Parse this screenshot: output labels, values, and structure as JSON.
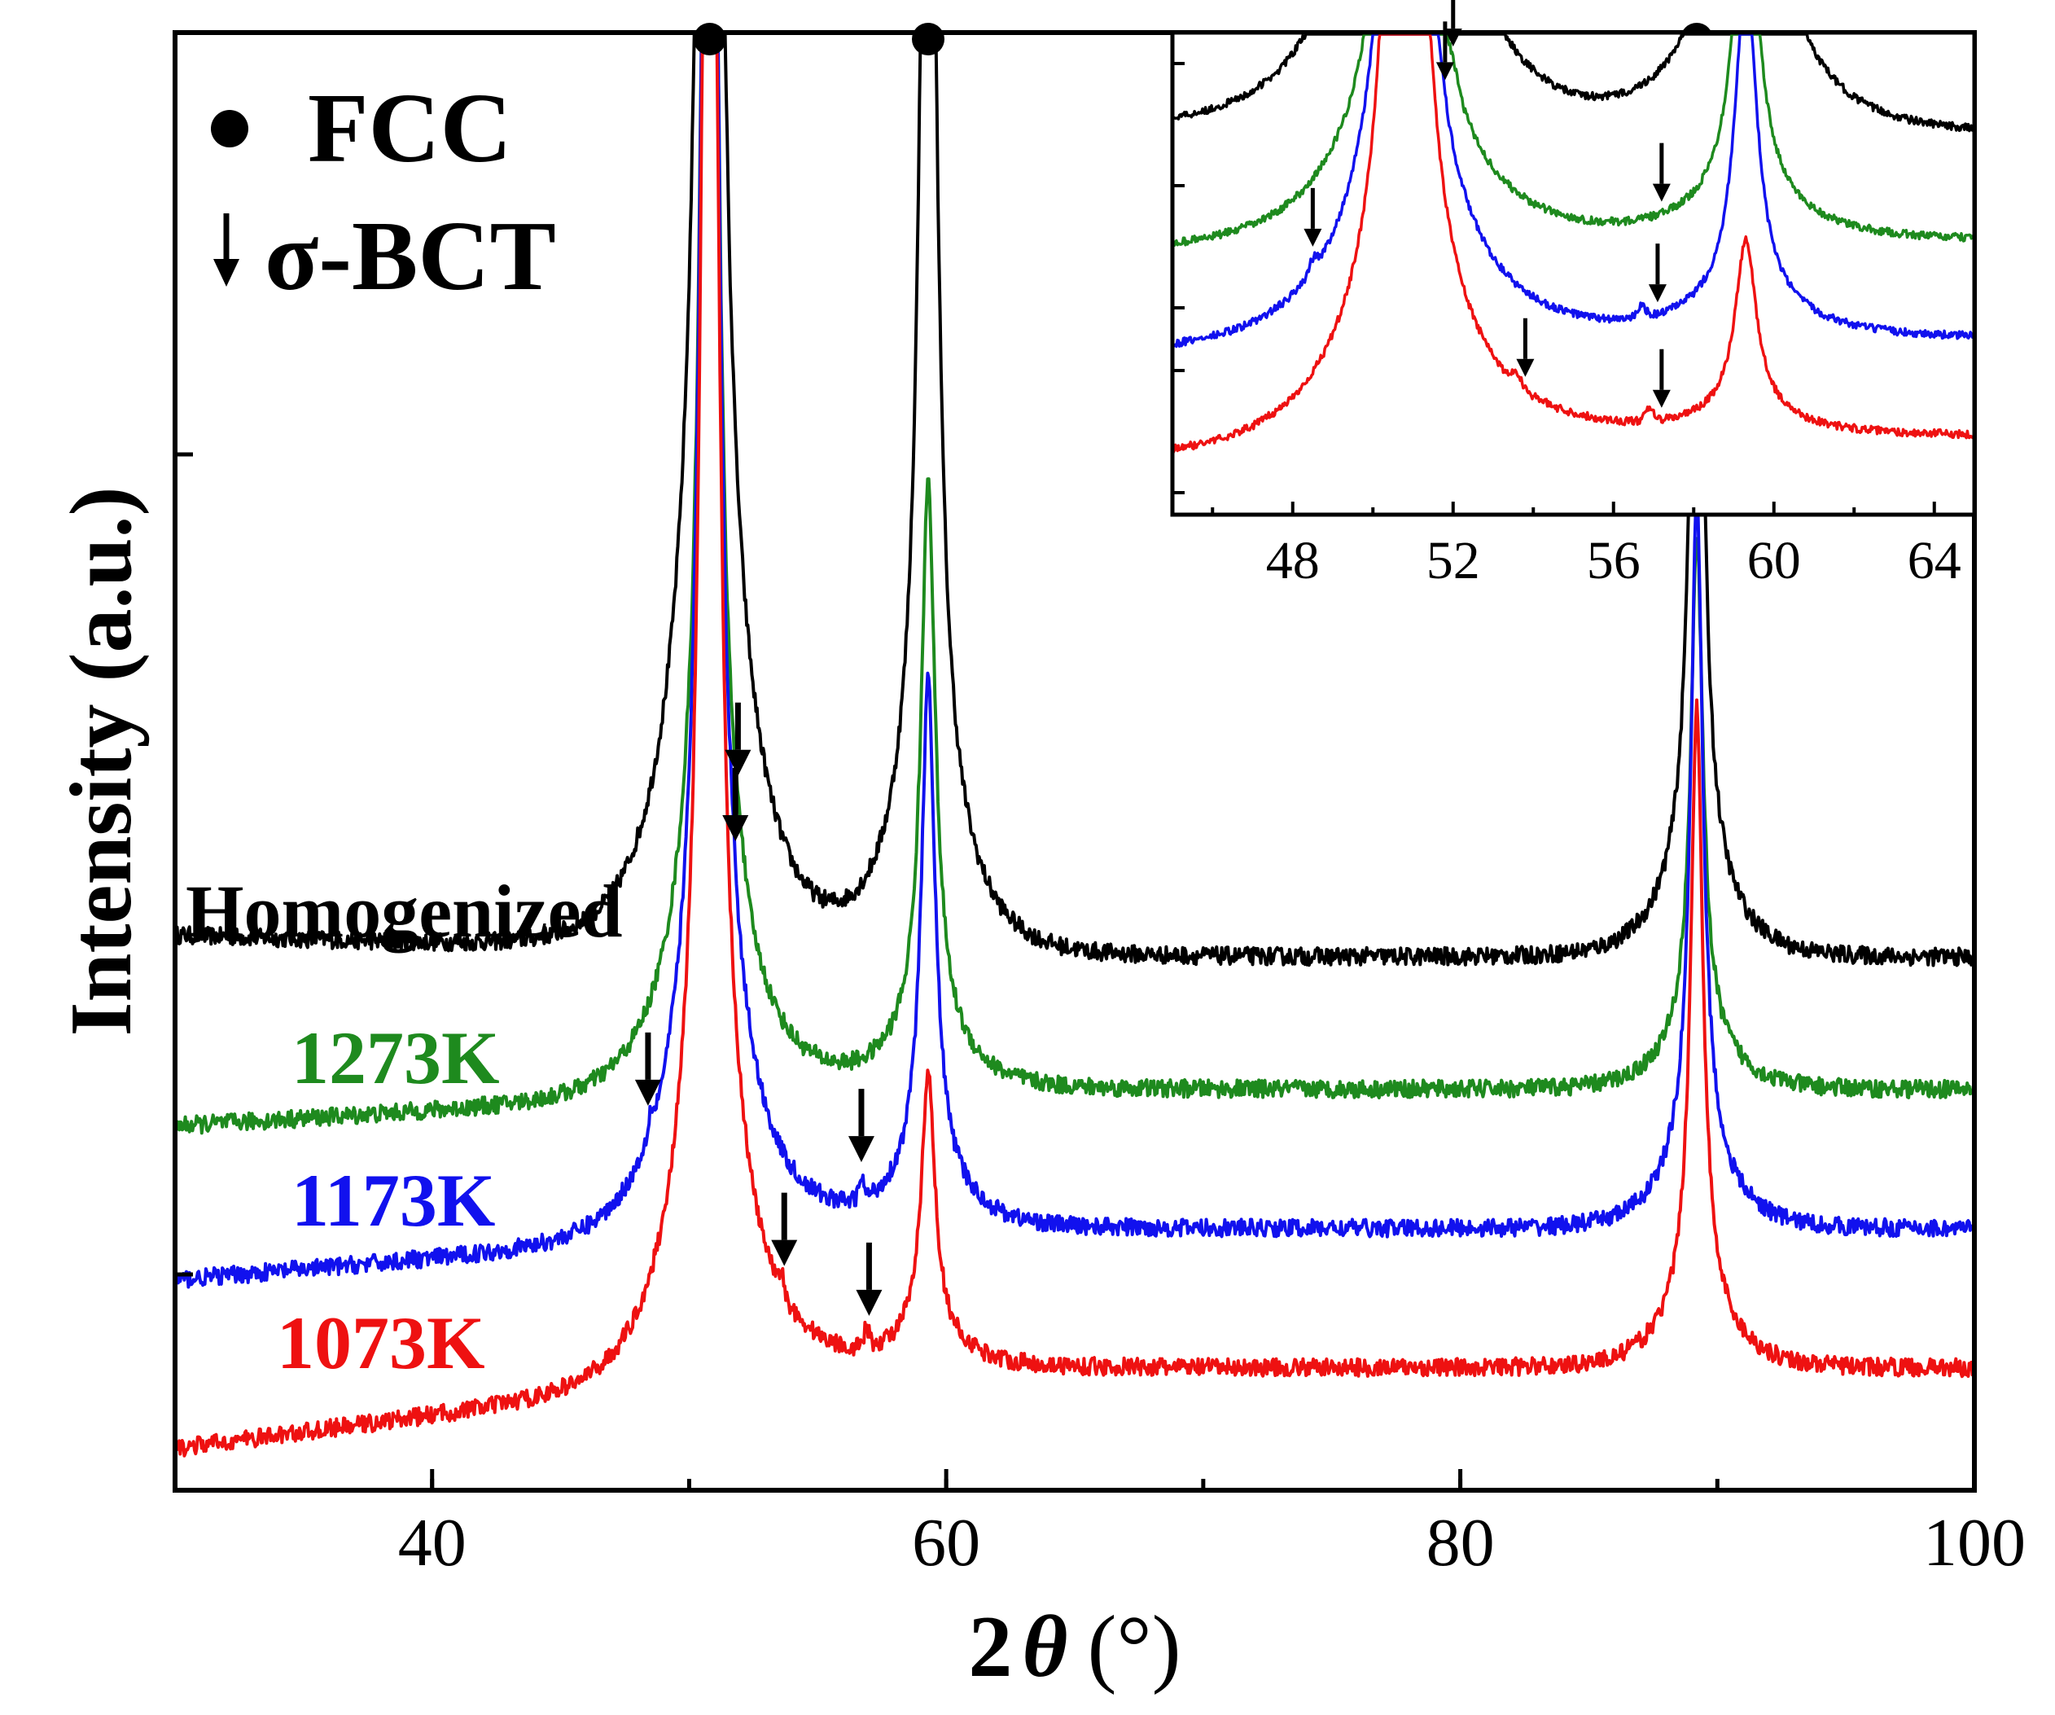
{
  "chart_data": {
    "type": "line",
    "title": "",
    "xlabel_main": "2",
    "xlabel_symbol": "θ",
    "xlabel_unit": "(°)",
    "ylabel": "Intensity (a.u.)",
    "xlim": [
      30,
      100
    ],
    "xticks": [
      40,
      60,
      80,
      100
    ],
    "ylim": [
      0,
      10
    ],
    "legend": {
      "position": "top-left",
      "entries": [
        {
          "marker": "circle",
          "label": "FCC"
        },
        {
          "marker": "down-arrow",
          "label": "σ-BCT"
        }
      ]
    },
    "peaks": [
      {
        "pos": 50.8,
        "height": 24.0,
        "width": 0.28,
        "tail": 1.4
      },
      {
        "pos": 59.3,
        "height": 11.0,
        "width": 0.32,
        "tail": 1.3
      },
      {
        "pos": 89.2,
        "height": 6.3,
        "width": 0.28,
        "tail": 1.2
      }
    ],
    "series": [
      {
        "name": "Homogenized",
        "color": "#000000",
        "offset": 3.3,
        "baseline_start": 3.45,
        "peak_scale": [
          1.0,
          1.0,
          1.0
        ],
        "sigma_peaks": []
      },
      {
        "name": "1273K",
        "color": "#1e8a1e",
        "offset": 2.4,
        "baseline_start": 2.15,
        "peak_scale": [
          0.62,
          0.38,
          0.6
        ],
        "sigma_peaks": [
          52.0
        ]
      },
      {
        "name": "1173K",
        "color": "#1111ee",
        "offset": 1.45,
        "baseline_start": 1.1,
        "peak_scale": [
          0.7,
          0.34,
          0.8
        ],
        "sigma_peaks": [
          48.5,
          51.7,
          56.7
        ]
      },
      {
        "name": "1073K",
        "color": "#ee1111",
        "offset": 0.5,
        "baseline_start": -0.05,
        "peak_scale": [
          0.71,
          0.18,
          0.72
        ],
        "sigma_peaks": [
          53.6,
          56.9
        ]
      }
    ],
    "fcc_markers": [
      50.8,
      59.3,
      89.2
    ],
    "sigma_arrows_main": [
      {
        "series": "1273K",
        "x": 51.9
      },
      {
        "series": "1173K",
        "x": 48.4
      },
      {
        "series": "1173K",
        "x": 51.8
      },
      {
        "series": "1173K",
        "x": 56.7
      },
      {
        "series": "1073K",
        "x": 53.7
      },
      {
        "series": "1073K",
        "x": 57.0
      }
    ],
    "inset": {
      "xlim": [
        45,
        65
      ],
      "xticks": [
        48,
        52,
        56,
        60,
        64
      ],
      "sigma_arrows": [
        {
          "series": "1273K",
          "x": 52.0
        },
        {
          "series": "1273K",
          "x": 57.2
        },
        {
          "series": "1173K",
          "x": 48.5
        },
        {
          "series": "1173K",
          "x": 51.8
        },
        {
          "series": "1173K",
          "x": 57.1
        },
        {
          "series": "1073K",
          "x": 53.8
        },
        {
          "series": "1073K",
          "x": 57.2
        }
      ]
    }
  }
}
